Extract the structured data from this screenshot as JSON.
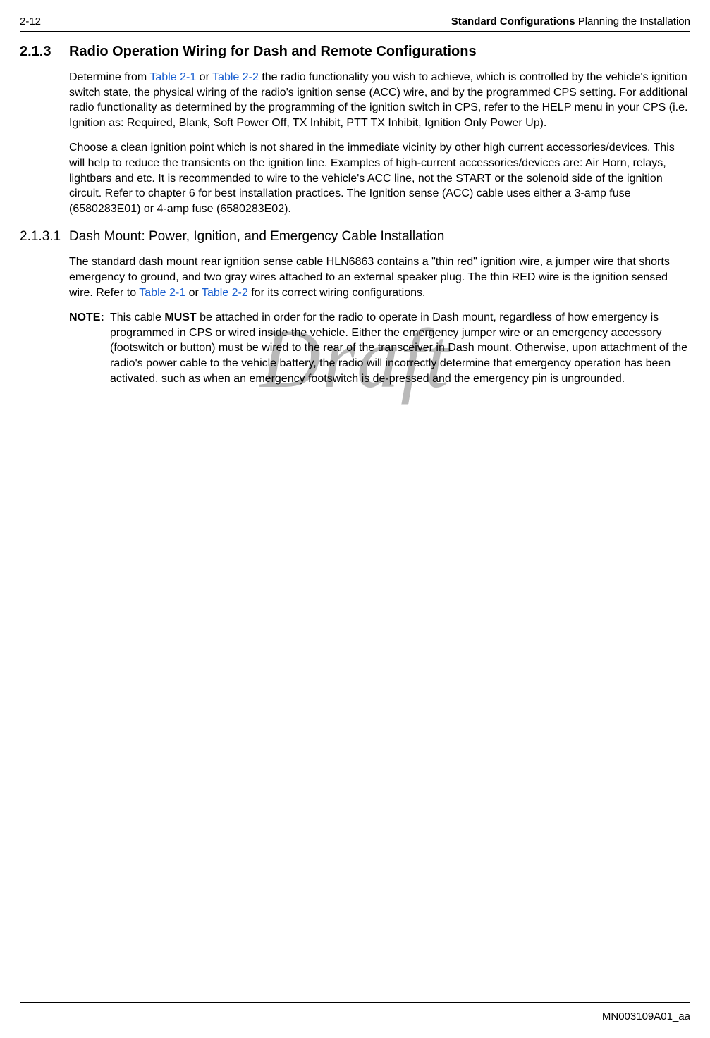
{
  "header": {
    "page_number": "2-12",
    "title_bold": "Standard Configurations",
    "title_rest": " Planning the Installation"
  },
  "section213": {
    "number": "2.1.3",
    "title": "Radio Operation Wiring for Dash and Remote Configurations",
    "p1_a": "Determine from ",
    "p1_link1": "Table 2-1",
    "p1_b": " or ",
    "p1_link2": "Table 2-2",
    "p1_c": " the radio functionality you wish to achieve, which is controlled by the vehicle's ignition switch state, the physical wiring of the radio's ignition sense (ACC) wire, and by the programmed CPS setting. For additional radio functionality as determined by the programming of the ignition switch in CPS, refer to the HELP menu in your CPS (i.e. Ignition as: Required, Blank, Soft Power Off, TX Inhibit, PTT TX Inhibit, Ignition Only Power Up).",
    "p2": "Choose a clean ignition point which is not shared in the immediate vicinity by other high current accessories/devices. This will help to reduce the transients on the ignition line. Examples of high-current accessories/devices are: Air Horn, relays, lightbars and etc. It is recommended to wire to the vehicle's ACC line, not the START or the solenoid side of the ignition circuit. Refer to chapter 6 for best installation practices. The Ignition sense (ACC) cable uses either a 3-amp fuse (6580283E01) or 4-amp fuse (6580283E02)."
  },
  "section2131": {
    "number": "2.1.3.1",
    "title": "Dash Mount: Power, Ignition, and Emergency Cable Installation",
    "p1_a": "The standard dash mount rear ignition sense cable HLN6863 contains a \"thin red\" ignition wire, a jumper wire that shorts emergency to ground, and two gray wires attached to an external speaker plug. The thin RED wire is the ignition sensed wire. Refer to ",
    "p1_link1": "Table 2-1",
    "p1_b": " or ",
    "p1_link2": "Table 2-2",
    "p1_c": " for its correct wiring configurations.",
    "note_label": "NOTE:",
    "note_a": "This cable ",
    "note_must": "MUST",
    "note_b": " be attached in order for the radio to operate in Dash mount, regardless of how emergency is programmed in CPS or wired inside the vehicle. Either the emergency jumper wire or an emergency accessory (footswitch or button) must be wired to the rear of the transceiver in Dash mount. Otherwise, upon attachment of the radio's power cable to the vehicle battery, the radio will incorrectly determine that emergency operation has been activated, such as when an emergency footswitch is de-pressed and the emergency pin is ungrounded."
  },
  "watermark": "Draft",
  "footer": "MN003109A01_aa",
  "colors": {
    "link": "#1a5fd0",
    "watermark": "#b9b9b9",
    "text": "#000000",
    "background": "#ffffff"
  }
}
